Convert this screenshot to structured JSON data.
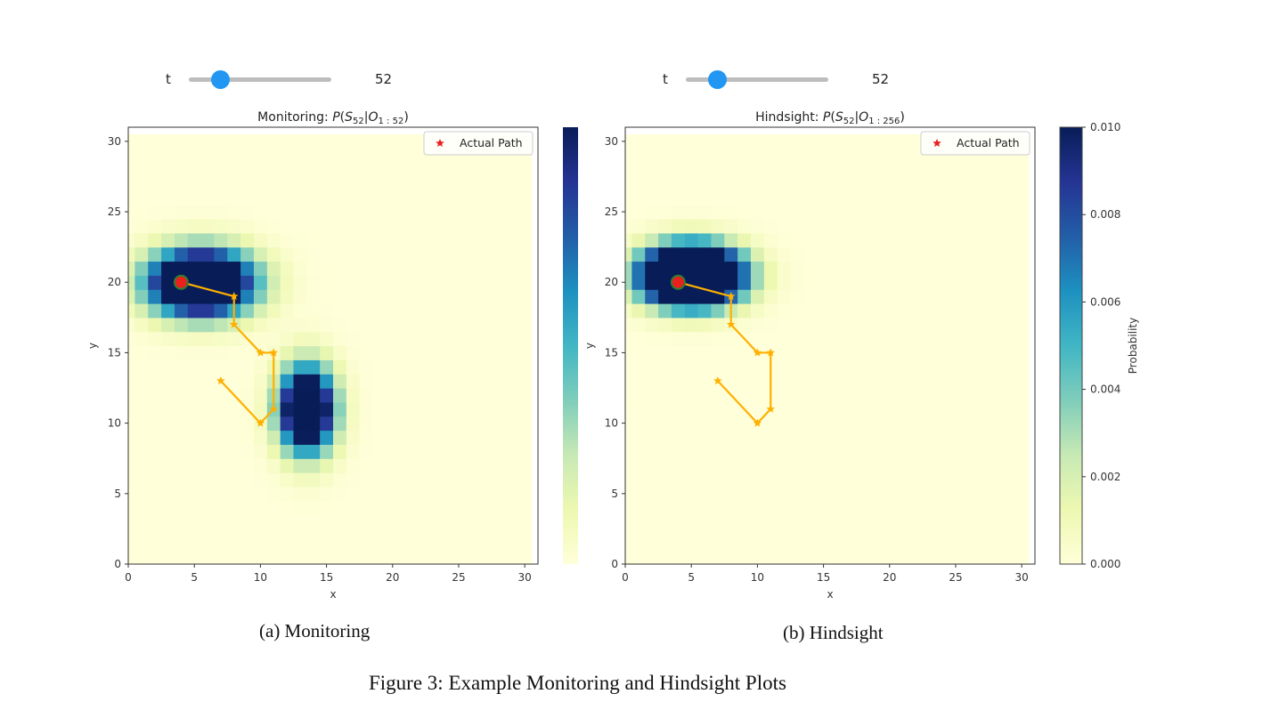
{
  "sliders": [
    {
      "label": "t",
      "value": "52",
      "level": 0.22
    },
    {
      "label": "t",
      "value": "52",
      "level": 0.22
    }
  ],
  "captions": {
    "a": "(a) Monitoring",
    "b": "(b) Hindsight",
    "figure": "Figure 3: Example Monitoring and Hindsight Plots"
  },
  "chart_data": [
    {
      "type": "heatmap",
      "title_prefix": "Monitoring: ",
      "title_math": "P(S52|O1:52)",
      "xlabel": "x",
      "ylabel": "y",
      "xlim": [
        0,
        31
      ],
      "ylim": [
        0,
        31
      ],
      "xticks": [
        0,
        5,
        10,
        15,
        20,
        25,
        30
      ],
      "yticks": [
        0,
        5,
        10,
        15,
        20,
        25,
        30
      ],
      "legend": {
        "label": "Actual Path",
        "position": "upper-right"
      },
      "color_scale": {
        "min": 0.0,
        "max": 0.01,
        "low_color": "#ffffd9",
        "high_color": "#081d58"
      },
      "path": {
        "x": [
          4,
          8,
          8,
          10,
          11,
          11,
          10,
          7
        ],
        "y": [
          20,
          19,
          17,
          15,
          15,
          11,
          10,
          13
        ],
        "color": "#ffb000"
      },
      "current_position": {
        "x": 4,
        "y": 20,
        "color": "#e8211f"
      },
      "blobs": [
        {
          "cx": 5.5,
          "cy": 20.0,
          "sx": 3.7,
          "sy": 2.2,
          "peak": 0.02
        },
        {
          "cx": 13.5,
          "cy": 11.0,
          "sx": 2.0,
          "sy": 2.9,
          "peak": 0.017
        }
      ]
    },
    {
      "type": "heatmap",
      "title_prefix": "Hindsight: ",
      "title_math": "P(S52|O1:256)",
      "xlabel": "x",
      "ylabel": "y",
      "xlim": [
        0,
        31
      ],
      "ylim": [
        0,
        31
      ],
      "xticks": [
        0,
        5,
        10,
        15,
        20,
        25,
        30
      ],
      "yticks": [
        0,
        5,
        10,
        15,
        20,
        25,
        30
      ],
      "legend": {
        "label": "Actual Path",
        "position": "upper-right"
      },
      "color_scale": {
        "min": 0.0,
        "max": 0.01,
        "low_color": "#ffffd9",
        "high_color": "#081d58"
      },
      "colorbar": {
        "label": "Probability",
        "ticks": [
          "0.000",
          "0.002",
          "0.004",
          "0.006",
          "0.008",
          "0.010"
        ]
      },
      "path": {
        "x": [
          4,
          8,
          8,
          10,
          11,
          11,
          10,
          7
        ],
        "y": [
          20,
          19,
          17,
          15,
          15,
          11,
          10,
          13
        ],
        "color": "#ffb000"
      },
      "current_position": {
        "x": 4,
        "y": 20,
        "color": "#e8211f"
      },
      "blobs": [
        {
          "cx": 5.0,
          "cy": 20.5,
          "sx": 3.4,
          "sy": 1.9,
          "peak": 0.03
        }
      ]
    }
  ]
}
